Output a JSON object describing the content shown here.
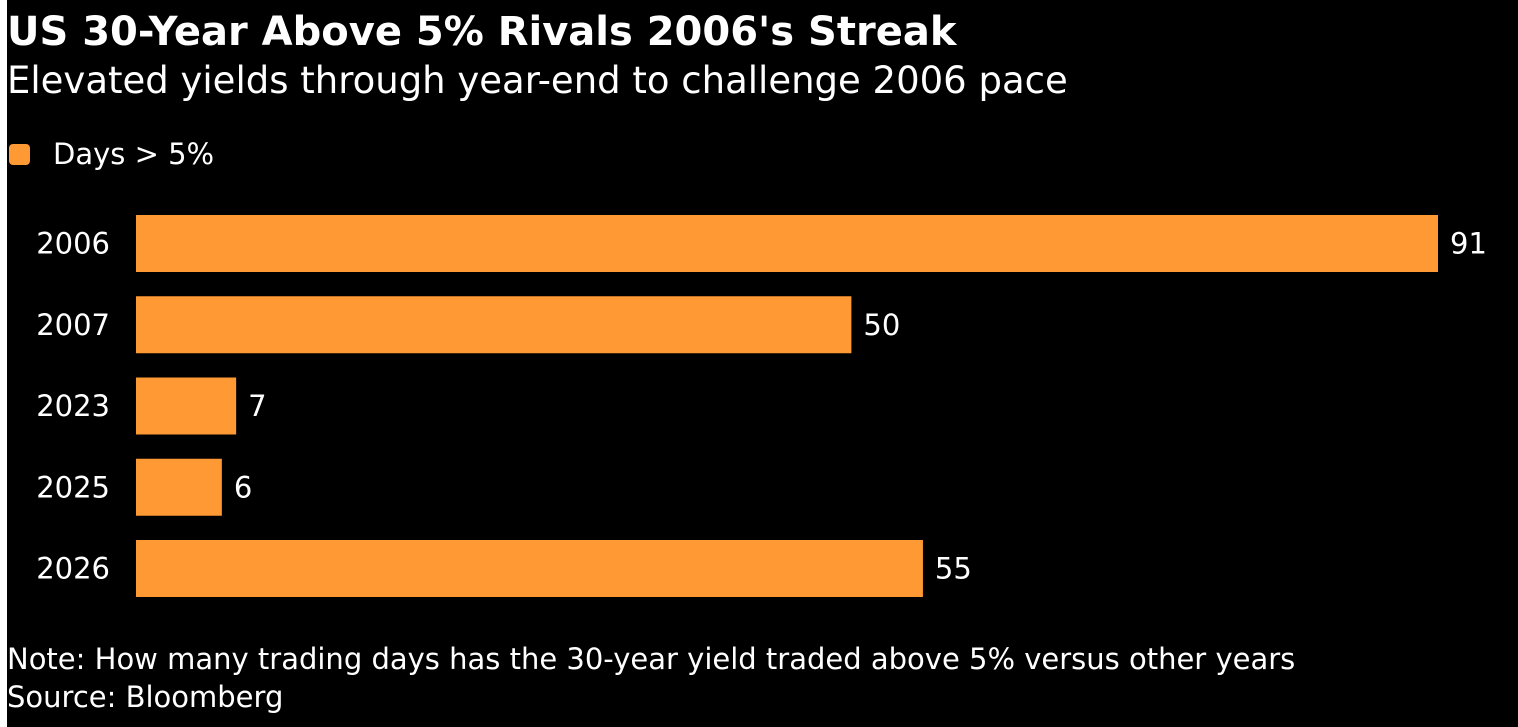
{
  "chart_data": {
    "type": "bar",
    "orientation": "horizontal",
    "title": "US 30-Year Above 5% Rivals 2006's Streak",
    "subtitle": "Elevated yields through year-end to challenge 2006 pace",
    "categories": [
      "2006",
      "2007",
      "2023",
      "2025",
      "2026"
    ],
    "series": [
      {
        "name": "Days > 5%",
        "values": [
          91,
          50,
          7,
          6,
          55
        ],
        "color": "#ff9933"
      }
    ],
    "xlim": [
      0,
      91
    ],
    "data_labels": [
      "91",
      "50",
      "7",
      "6",
      "55"
    ],
    "grid": false,
    "legend_position": "top-left",
    "background": "#000000",
    "text_color": "#ffffff"
  },
  "footer": {
    "note": "Note: How many trading days has the 30-year yield traded above 5% versus other years",
    "source": "Source: Bloomberg"
  }
}
